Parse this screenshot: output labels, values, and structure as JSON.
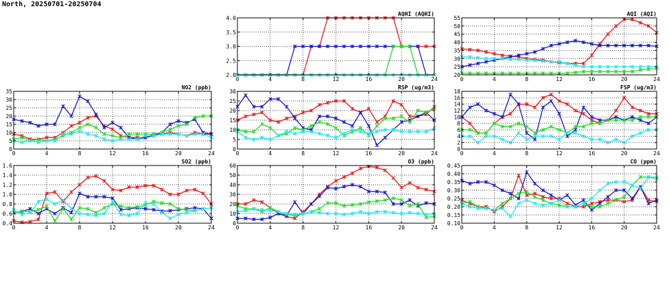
{
  "page_title": "North, 20250701-20250704",
  "colors": {
    "red": "#e41a1c",
    "blue": "#1515c8",
    "green": "#22dd22",
    "cyan": "#22e6f0"
  },
  "chart_data": [
    {
      "id": "aqhi",
      "type": "line",
      "title": "AQHI (AQHI)",
      "xlim": [
        0,
        24
      ],
      "xticks": [
        0,
        4,
        8,
        12,
        16,
        20,
        24
      ],
      "ylim": [
        2,
        4
      ],
      "yticks": [
        "2.0",
        "2.5",
        "3.0",
        "3.5",
        "4.0"
      ],
      "grid": true,
      "series": [
        {
          "color": "red",
          "values": [
            2,
            2,
            2,
            2,
            2,
            2,
            2,
            2,
            2,
            3,
            3,
            4,
            4,
            4,
            4,
            4,
            4,
            4,
            4,
            4,
            3,
            3,
            3,
            3,
            3
          ]
        },
        {
          "color": "blue",
          "values": [
            2,
            2,
            2,
            2,
            2,
            2,
            2,
            3,
            3,
            3,
            3,
            3,
            3,
            3,
            3,
            3,
            3,
            3,
            3,
            3,
            3,
            3,
            3,
            2,
            2
          ]
        },
        {
          "color": "green",
          "values": [
            2,
            2,
            2,
            2,
            2,
            2,
            2,
            2,
            2,
            2,
            2,
            2,
            2,
            2,
            2,
            2,
            2,
            2,
            2,
            3,
            3,
            3,
            2,
            2,
            2
          ]
        },
        {
          "color": "cyan",
          "values": [
            2,
            2,
            2,
            2,
            2,
            2,
            2,
            2,
            2,
            2,
            2,
            2,
            2,
            2,
            2,
            2,
            2,
            2,
            2,
            2,
            2,
            2,
            2,
            2,
            2
          ]
        }
      ]
    },
    {
      "id": "aqi",
      "type": "line",
      "title": "AQI (AQI)",
      "xlim": [
        0,
        24
      ],
      "xticks": [
        0,
        4,
        8,
        12,
        16,
        20,
        24
      ],
      "ylim": [
        20,
        55
      ],
      "yticks": [
        "20",
        "25",
        "30",
        "35",
        "40",
        "45",
        "50",
        "55"
      ],
      "grid": true,
      "series": [
        {
          "color": "red",
          "values": [
            36,
            35.5,
            35,
            34,
            33,
            32,
            31.5,
            31,
            30,
            29.5,
            29,
            28,
            27.5,
            27,
            27,
            27,
            32,
            39,
            45,
            50,
            54,
            54,
            52,
            50,
            46
          ]
        },
        {
          "color": "blue",
          "values": [
            25,
            26,
            27,
            28,
            29,
            30,
            31,
            32,
            33,
            34,
            36,
            38,
            39,
            40,
            41,
            40,
            39,
            38,
            38,
            38,
            38,
            38,
            38,
            38,
            37.5
          ]
        },
        {
          "color": "green",
          "values": [
            21,
            21,
            21,
            21,
            21,
            21,
            21,
            21,
            21,
            21,
            21,
            21,
            21,
            21,
            21.5,
            22,
            22,
            22,
            22,
            22,
            22,
            22,
            23,
            23.5,
            24
          ]
        },
        {
          "color": "cyan",
          "values": [
            31,
            31,
            30.5,
            30,
            30,
            30,
            29.5,
            29.5,
            29,
            29,
            28.5,
            28,
            28,
            27,
            26,
            25,
            25,
            25,
            25,
            25,
            25,
            25,
            25,
            25,
            25
          ]
        }
      ]
    },
    {
      "id": "no2",
      "type": "line",
      "title": "NO2 (ppb)",
      "xlim": [
        0,
        24
      ],
      "xticks": [
        0,
        4,
        8,
        12,
        16,
        20,
        24
      ],
      "ylim": [
        0,
        35
      ],
      "yticks": [
        "0",
        "5",
        "10",
        "15",
        "20",
        "25",
        "30",
        "35"
      ],
      "grid": true,
      "series": [
        {
          "color": "red",
          "values": [
            9,
            8,
            6,
            6,
            7,
            7,
            10,
            14,
            16,
            19,
            20,
            14,
            12,
            8,
            7,
            7,
            7,
            9,
            9,
            10,
            9,
            8,
            10,
            9,
            9
          ]
        },
        {
          "color": "blue",
          "values": [
            18,
            17,
            16,
            14,
            15,
            15,
            26,
            20,
            32,
            29,
            21,
            13,
            16,
            13,
            7,
            6,
            7,
            8,
            10,
            15,
            17,
            16,
            18,
            10,
            9
          ]
        },
        {
          "color": "green",
          "values": [
            6,
            7,
            5,
            6,
            5,
            6,
            8,
            10,
            13,
            15,
            13,
            9,
            8,
            7,
            9,
            9,
            9,
            9,
            10,
            12,
            14,
            15,
            19,
            20,
            20
          ]
        },
        {
          "color": "cyan",
          "values": [
            5,
            4,
            5,
            4,
            5,
            5,
            9,
            9,
            11,
            9,
            8,
            6,
            5,
            6,
            6,
            6,
            8,
            8,
            9,
            9,
            9,
            8,
            9,
            9,
            7
          ]
        }
      ]
    },
    {
      "id": "rsp",
      "type": "line",
      "title": "RSP (ug/m3)",
      "xlim": [
        0,
        24
      ],
      "xticks": [
        0,
        4,
        8,
        12,
        16,
        20,
        24
      ],
      "ylim": [
        0,
        30
      ],
      "yticks": [
        "0",
        "5",
        "10",
        "15",
        "20",
        "25",
        "30"
      ],
      "grid": true,
      "series": [
        {
          "color": "red",
          "values": [
            15,
            17,
            18,
            19,
            15,
            14,
            16,
            17,
            19,
            20,
            23,
            24,
            25,
            25,
            21,
            19,
            21,
            14,
            17,
            25,
            23,
            17,
            17,
            18,
            22
          ]
        },
        {
          "color": "blue",
          "values": [
            22,
            28,
            22,
            22,
            26,
            26,
            22,
            16,
            11,
            10,
            17,
            17,
            16,
            14,
            12,
            19,
            12,
            2,
            6,
            10,
            14,
            15,
            17,
            19,
            15
          ]
        },
        {
          "color": "green",
          "values": [
            10,
            9,
            9,
            13,
            11,
            7,
            8,
            11,
            10,
            12,
            14,
            13,
            11,
            7,
            9,
            11,
            7,
            12,
            16,
            16,
            17,
            14,
            20,
            19,
            21
          ]
        },
        {
          "color": "cyan",
          "values": [
            9,
            6,
            5,
            6,
            5,
            7,
            9,
            8,
            9,
            9,
            8,
            7,
            6,
            8,
            10,
            9,
            8,
            9,
            10,
            10,
            9,
            9,
            9,
            9,
            11
          ]
        }
      ]
    },
    {
      "id": "fsp",
      "type": "line",
      "title": "FSP (ug/m3)",
      "xlim": [
        0,
        24
      ],
      "xticks": [
        0,
        4,
        8,
        12,
        16,
        20,
        24
      ],
      "ylim": [
        0,
        18
      ],
      "yticks": [
        "0",
        "2",
        "4",
        "6",
        "8",
        "10",
        "12",
        "14",
        "16",
        "18"
      ],
      "grid": true,
      "series": [
        {
          "color": "red",
          "values": [
            10,
            8,
            5,
            5,
            8,
            10,
            11,
            14,
            14,
            13,
            16,
            17,
            15,
            14,
            12,
            11,
            9,
            8,
            9,
            12,
            16,
            13,
            12,
            11,
            11
          ]
        },
        {
          "color": "blue",
          "values": [
            10,
            13,
            14,
            12,
            11,
            10,
            17,
            14,
            5,
            3,
            13,
            15,
            11,
            4,
            6,
            13,
            10,
            9,
            9,
            10,
            9,
            10,
            9,
            8,
            10
          ]
        },
        {
          "color": "green",
          "values": [
            6,
            6,
            5,
            5,
            8,
            7,
            7,
            8,
            7,
            5,
            6,
            7,
            6,
            5,
            7,
            7,
            8,
            8,
            9,
            9,
            9,
            9,
            10,
            10,
            10
          ]
        },
        {
          "color": "cyan",
          "values": [
            4,
            4,
            2,
            4,
            4,
            3,
            2,
            5,
            3,
            4,
            4,
            4,
            3,
            5,
            5,
            4,
            3,
            3,
            2,
            3,
            2,
            4,
            5,
            6,
            6
          ]
        }
      ]
    },
    {
      "id": "so2",
      "type": "line",
      "title": "SO2 (ppb)",
      "xlim": [
        0,
        24
      ],
      "xticks": [
        0,
        4,
        8,
        12,
        16,
        20,
        24
      ],
      "ylim": [
        0.4,
        1.6
      ],
      "yticks": [
        "0.4",
        "0.6",
        "0.8",
        "1.0",
        "1.2",
        "1.4",
        "1.6"
      ],
      "grid": true,
      "series": [
        {
          "color": "red",
          "values": [
            0.45,
            0.42,
            0.43,
            0.48,
            1.02,
            1.05,
            0.85,
            1.05,
            1.2,
            1.35,
            1.38,
            1.28,
            1.1,
            1.08,
            1.15,
            1.15,
            1.18,
            1.18,
            1.1,
            1.0,
            1.0,
            1.08,
            1.1,
            1.02,
            0.8
          ]
        },
        {
          "color": "blue",
          "values": [
            0.62,
            0.64,
            0.7,
            0.6,
            0.7,
            0.6,
            0.72,
            0.62,
            1.02,
            0.95,
            0.95,
            0.95,
            0.92,
            0.68,
            0.7,
            0.72,
            0.7,
            0.68,
            0.65,
            0.66,
            0.68,
            0.7,
            0.72,
            0.7,
            0.5
          ]
        },
        {
          "color": "green",
          "values": [
            0.62,
            0.65,
            0.64,
            0.68,
            0.75,
            0.45,
            0.7,
            0.48,
            0.72,
            0.7,
            0.62,
            0.72,
            0.8,
            0.75,
            0.72,
            0.74,
            0.78,
            0.85,
            0.82,
            0.8,
            0.7,
            0.68,
            0.66,
            0.7,
            0.72
          ]
        },
        {
          "color": "cyan",
          "values": [
            0.68,
            0.58,
            0.62,
            0.85,
            0.9,
            0.8,
            0.88,
            0.7,
            0.6,
            0.58,
            0.56,
            0.6,
            0.85,
            0.58,
            0.56,
            0.6,
            0.82,
            0.8,
            0.62,
            0.5,
            0.58,
            0.62,
            0.66,
            0.7,
            0.72
          ]
        }
      ]
    },
    {
      "id": "o3",
      "type": "line",
      "title": "O3 (ppb)",
      "xlim": [
        0,
        24
      ],
      "xticks": [
        0,
        4,
        8,
        12,
        16,
        20,
        24
      ],
      "ylim": [
        0,
        60
      ],
      "yticks": [
        "0",
        "10",
        "20",
        "30",
        "40",
        "50",
        "60"
      ],
      "grid": true,
      "series": [
        {
          "color": "red",
          "values": [
            20,
            20,
            24,
            22,
            16,
            10,
            7,
            5,
            12,
            20,
            30,
            38,
            44,
            48,
            52,
            57,
            59,
            58,
            55,
            47,
            37,
            42,
            37,
            35,
            33
          ]
        },
        {
          "color": "blue",
          "values": [
            5,
            5,
            4,
            4,
            6,
            10,
            8,
            22,
            10,
            20,
            28,
            37,
            36,
            38,
            40,
            38,
            33,
            33,
            32,
            20,
            20,
            24,
            18,
            21,
            20
          ]
        },
        {
          "color": "green",
          "values": [
            18,
            15,
            15,
            12,
            16,
            12,
            9,
            8,
            10,
            12,
            15,
            21,
            21,
            18,
            19,
            20,
            22,
            23,
            24,
            26,
            24,
            18,
            20,
            6,
            7
          ]
        },
        {
          "color": "cyan",
          "values": [
            12,
            13,
            15,
            14,
            13,
            12,
            10,
            9,
            10,
            12,
            11,
            10,
            10,
            9,
            10,
            12,
            10,
            12,
            12,
            11,
            10,
            11,
            10,
            9,
            10
          ]
        }
      ]
    },
    {
      "id": "co",
      "type": "line",
      "title": "CO (ppm)",
      "xlim": [
        0,
        24
      ],
      "xticks": [
        0,
        4,
        8,
        12,
        16,
        20,
        24
      ],
      "ylim": [
        0.1,
        0.45
      ],
      "yticks": [
        "0.10",
        "0.15",
        "0.20",
        "0.25",
        "0.30",
        "0.35",
        "0.40",
        "0.45"
      ],
      "grid": true,
      "series": [
        {
          "color": "red",
          "values": [
            0.24,
            0.22,
            0.2,
            0.2,
            0.17,
            0.2,
            0.25,
            0.39,
            0.27,
            0.28,
            0.26,
            0.25,
            0.25,
            0.22,
            0.2,
            0.2,
            0.22,
            0.23,
            0.24,
            0.24,
            0.23,
            0.24,
            0.32,
            0.24,
            0.23
          ]
        },
        {
          "color": "blue",
          "values": [
            0.36,
            0.34,
            0.35,
            0.35,
            0.33,
            0.3,
            0.28,
            0.25,
            0.41,
            0.34,
            0.3,
            0.27,
            0.24,
            0.27,
            0.21,
            0.24,
            0.18,
            0.22,
            0.26,
            0.3,
            0.3,
            0.25,
            0.32,
            0.22,
            0.24
          ]
        },
        {
          "color": "green",
          "values": [
            0.22,
            0.23,
            0.2,
            0.19,
            0.18,
            0.22,
            0.25,
            0.28,
            0.29,
            0.26,
            0.24,
            0.22,
            0.21,
            0.2,
            0.2,
            0.22,
            0.2,
            0.2,
            0.22,
            0.24,
            0.26,
            0.33,
            0.38,
            0.38,
            0.37
          ]
        },
        {
          "color": "cyan",
          "values": [
            0.22,
            0.2,
            0.19,
            0.19,
            0.18,
            0.19,
            0.14,
            0.22,
            0.24,
            0.22,
            0.21,
            0.22,
            0.24,
            0.2,
            0.2,
            0.22,
            0.25,
            0.3,
            0.34,
            0.35,
            0.35,
            0.33,
            0.31,
            0.38,
            0.38
          ]
        }
      ]
    }
  ]
}
